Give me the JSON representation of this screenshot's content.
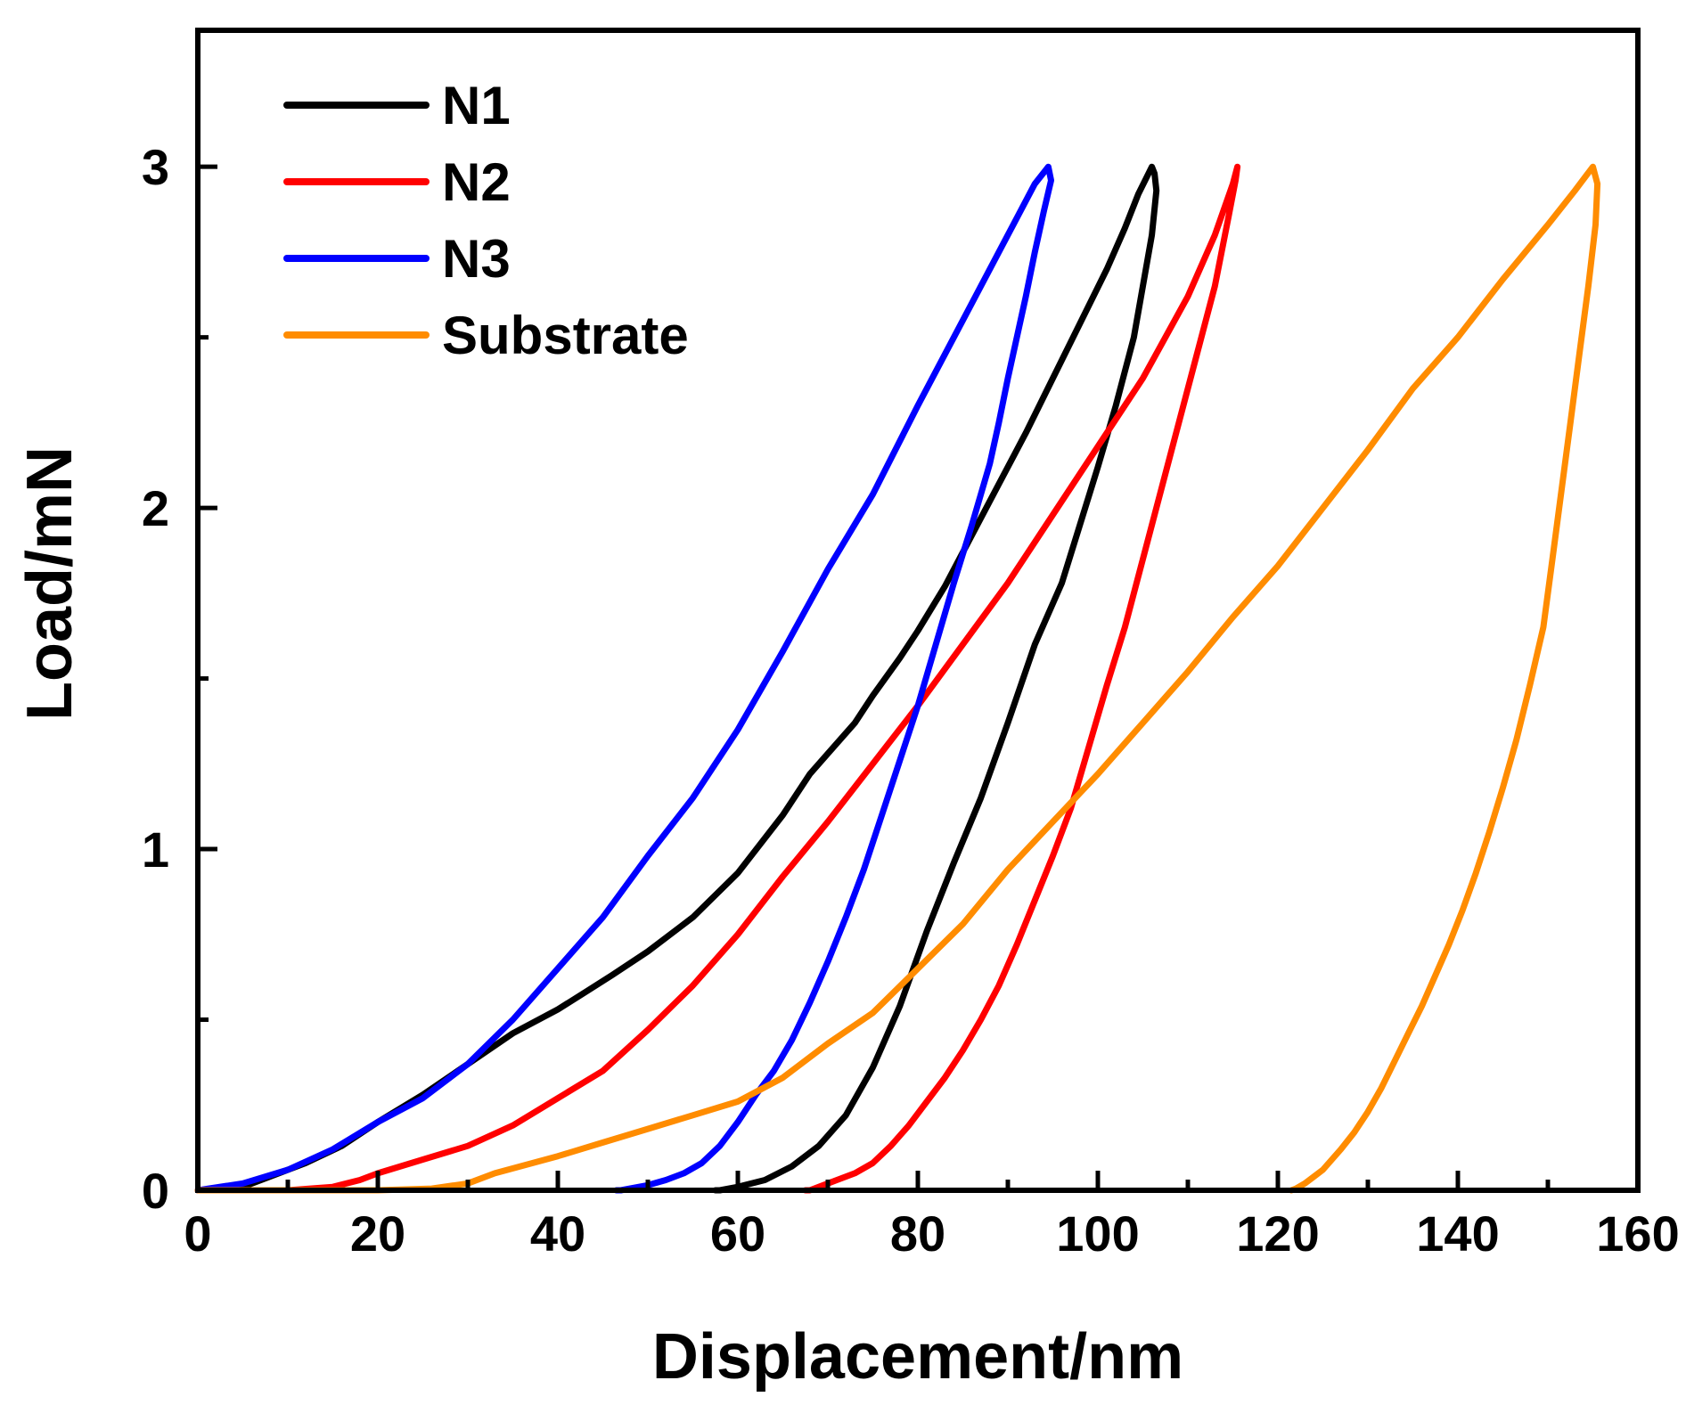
{
  "chart_data": {
    "type": "line",
    "title": "",
    "xlabel": "Displacement/nm",
    "ylabel": "Load/mN",
    "xlim": [
      0,
      160
    ],
    "ylim": [
      0,
      3.4
    ],
    "x_major_ticks": [
      0,
      20,
      40,
      60,
      80,
      100,
      120,
      140,
      160
    ],
    "x_tick_labels": [
      "0",
      "20",
      "40",
      "60",
      "80",
      "100",
      "120",
      "140",
      "160"
    ],
    "y_major_ticks": [
      0,
      1,
      2,
      3
    ],
    "y_tick_labels": [
      "0",
      "1",
      "2",
      "3"
    ],
    "y_minor_ticks": [
      0.5,
      1.5,
      2.5
    ],
    "grid": false,
    "legend_position": "top-left",
    "series": [
      {
        "name": "N1",
        "color": "#000000",
        "x": [
          0,
          5,
          8,
          12,
          16,
          20,
          25,
          30,
          35,
          40,
          43,
          46,
          50,
          55,
          60,
          65,
          68,
          70,
          73,
          75,
          78,
          80,
          83,
          86,
          89,
          92,
          95,
          98,
          101,
          103,
          104.5,
          106,
          106.3,
          106.5,
          106,
          105,
          104,
          102,
          100,
          98,
          96,
          93,
          90,
          87,
          84,
          81,
          78,
          75,
          72,
          69,
          66,
          63,
          60,
          58,
          57.5
        ],
        "y": [
          0,
          0.01,
          0.04,
          0.08,
          0.13,
          0.2,
          0.28,
          0.37,
          0.46,
          0.53,
          0.58,
          0.63,
          0.7,
          0.8,
          0.93,
          1.1,
          1.22,
          1.28,
          1.37,
          1.45,
          1.56,
          1.64,
          1.77,
          1.92,
          2.07,
          2.22,
          2.38,
          2.54,
          2.7,
          2.82,
          2.92,
          3.0,
          2.98,
          2.93,
          2.8,
          2.65,
          2.5,
          2.3,
          2.12,
          1.95,
          1.78,
          1.6,
          1.37,
          1.15,
          0.96,
          0.76,
          0.54,
          0.36,
          0.22,
          0.13,
          0.07,
          0.03,
          0.01,
          0.0,
          0
        ]
      },
      {
        "name": "N2",
        "color": "#ff0000",
        "x": [
          0,
          10,
          15,
          18,
          20,
          25,
          30,
          35,
          40,
          45,
          50,
          55,
          60,
          65,
          70,
          75,
          80,
          85,
          90,
          95,
          100,
          105,
          110,
          113,
          115,
          115.5,
          115.3,
          114.5,
          113,
          111,
          109,
          107,
          105,
          103,
          101,
          99,
          97,
          95,
          93,
          91,
          89,
          87,
          85,
          83,
          81,
          79,
          77,
          75,
          73,
          71,
          69,
          68,
          67.5
        ],
        "y": [
          0,
          0,
          0.01,
          0.03,
          0.05,
          0.09,
          0.13,
          0.19,
          0.27,
          0.35,
          0.47,
          0.6,
          0.75,
          0.92,
          1.08,
          1.25,
          1.42,
          1.6,
          1.78,
          1.98,
          2.18,
          2.38,
          2.62,
          2.8,
          2.95,
          3.0,
          2.96,
          2.85,
          2.65,
          2.45,
          2.25,
          2.05,
          1.85,
          1.65,
          1.48,
          1.3,
          1.12,
          0.98,
          0.85,
          0.72,
          0.6,
          0.5,
          0.41,
          0.33,
          0.26,
          0.19,
          0.13,
          0.08,
          0.05,
          0.03,
          0.01,
          0,
          0
        ]
      },
      {
        "name": "N3",
        "color": "#0000ff",
        "x": [
          0,
          5,
          10,
          15,
          20,
          25,
          30,
          35,
          40,
          45,
          50,
          55,
          60,
          65,
          70,
          75,
          80,
          85,
          90,
          93,
          94.5,
          94.8,
          94,
          93,
          92,
          91,
          90,
          89,
          88,
          86,
          84,
          82,
          80,
          78,
          76,
          74,
          72,
          70,
          68,
          66,
          64,
          62,
          60,
          58,
          56,
          54,
          52,
          50,
          48,
          47,
          46.5
        ],
        "y": [
          0,
          0.02,
          0.06,
          0.12,
          0.2,
          0.27,
          0.37,
          0.5,
          0.65,
          0.8,
          0.98,
          1.15,
          1.35,
          1.58,
          1.82,
          2.04,
          2.3,
          2.55,
          2.8,
          2.95,
          3.0,
          2.96,
          2.87,
          2.75,
          2.62,
          2.5,
          2.38,
          2.25,
          2.13,
          1.95,
          1.78,
          1.6,
          1.42,
          1.26,
          1.1,
          0.94,
          0.8,
          0.67,
          0.55,
          0.44,
          0.35,
          0.28,
          0.2,
          0.13,
          0.08,
          0.05,
          0.03,
          0.015,
          0.005,
          0,
          0
        ]
      },
      {
        "name": "Substrate",
        "color": "#ff8c00",
        "x": [
          0,
          10,
          20,
          26,
          30,
          33,
          40,
          45,
          50,
          55,
          60,
          65,
          70,
          75,
          80,
          85,
          90,
          95,
          100,
          105,
          110,
          115,
          120,
          125,
          130,
          135,
          140,
          145,
          150,
          153,
          155,
          155.5,
          155.3,
          154.5,
          153.5,
          152.5,
          151.5,
          150.5,
          149.5,
          148,
          146.5,
          145,
          143.5,
          142,
          140.5,
          139,
          137.5,
          136,
          134.5,
          133,
          131.5,
          130,
          128.5,
          127,
          126,
          125,
          124,
          123,
          122,
          121.5
        ],
        "y": [
          0,
          0,
          0,
          0.005,
          0.02,
          0.05,
          0.1,
          0.14,
          0.18,
          0.22,
          0.26,
          0.33,
          0.43,
          0.52,
          0.65,
          0.78,
          0.94,
          1.08,
          1.22,
          1.37,
          1.52,
          1.68,
          1.83,
          2.0,
          2.17,
          2.35,
          2.5,
          2.67,
          2.83,
          2.93,
          3.0,
          2.95,
          2.83,
          2.65,
          2.45,
          2.25,
          2.05,
          1.85,
          1.65,
          1.48,
          1.32,
          1.18,
          1.05,
          0.93,
          0.82,
          0.72,
          0.63,
          0.54,
          0.46,
          0.38,
          0.3,
          0.23,
          0.17,
          0.12,
          0.09,
          0.06,
          0.04,
          0.02,
          0.005,
          0
        ]
      }
    ]
  }
}
